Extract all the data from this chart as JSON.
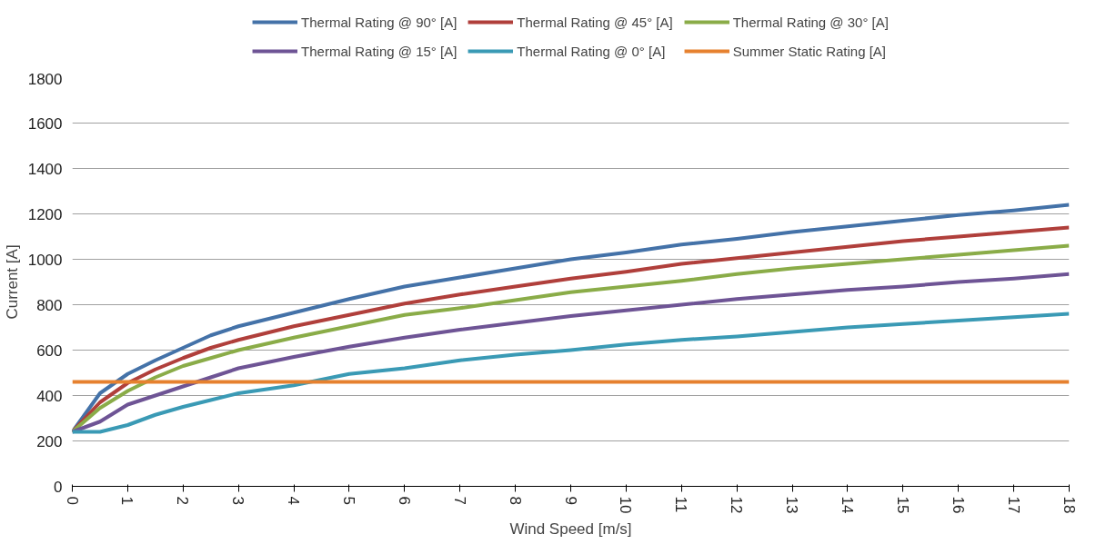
{
  "chart_data": {
    "type": "line",
    "xlabel": "Wind Speed [m/s]",
    "ylabel": "Current [A]",
    "x": [
      0,
      0.5,
      1,
      1.5,
      2,
      2.5,
      3,
      4,
      5,
      6,
      7,
      8,
      9,
      10,
      11,
      12,
      13,
      14,
      15,
      16,
      17,
      18
    ],
    "series": [
      {
        "name": "Thermal Rating @ 90° [A]",
        "color": "#4472a8",
        "values": [
          240,
          410,
          495,
          555,
          610,
          665,
          705,
          765,
          825,
          880,
          920,
          960,
          1000,
          1030,
          1065,
          1090,
          1120,
          1145,
          1170,
          1195,
          1215,
          1240
        ]
      },
      {
        "name": "Thermal Rating @ 45° [A]",
        "color": "#b03f3b",
        "values": [
          240,
          370,
          455,
          515,
          565,
          610,
          645,
          705,
          755,
          805,
          845,
          880,
          915,
          945,
          980,
          1005,
          1030,
          1055,
          1080,
          1100,
          1120,
          1140
        ]
      },
      {
        "name": "Thermal Rating @ 30° [A]",
        "color": "#8aac48",
        "values": [
          240,
          345,
          420,
          480,
          530,
          565,
          600,
          655,
          705,
          755,
          785,
          820,
          855,
          880,
          905,
          935,
          960,
          980,
          1000,
          1020,
          1040,
          1060
        ]
      },
      {
        "name": "Thermal Rating @ 15° [A]",
        "color": "#6e5495",
        "values": [
          240,
          285,
          360,
          400,
          440,
          480,
          520,
          570,
          615,
          655,
          690,
          720,
          750,
          775,
          800,
          825,
          845,
          865,
          880,
          900,
          915,
          935
        ]
      },
      {
        "name": "Thermal Rating @ 0° [A]",
        "color": "#3a9ab5",
        "values": [
          240,
          240,
          270,
          315,
          350,
          380,
          410,
          445,
          495,
          520,
          555,
          580,
          600,
          625,
          645,
          660,
          680,
          700,
          715,
          730,
          745,
          760
        ]
      },
      {
        "name": "Summer Static Rating [A]",
        "color": "#e6812f",
        "x": [
          0,
          18
        ],
        "values": [
          460,
          460
        ]
      }
    ],
    "xlim": [
      0,
      18
    ],
    "xticks": [
      0,
      1,
      2,
      3,
      4,
      5,
      6,
      7,
      8,
      9,
      10,
      11,
      12,
      13,
      14,
      15,
      16,
      17,
      18
    ],
    "ylim": [
      0,
      1800
    ],
    "yticks": [
      0,
      200,
      400,
      600,
      800,
      1000,
      1200,
      1400,
      1600,
      1800
    ],
    "grid": "y",
    "legend": "top",
    "marker": "none",
    "line_style": "solid"
  }
}
